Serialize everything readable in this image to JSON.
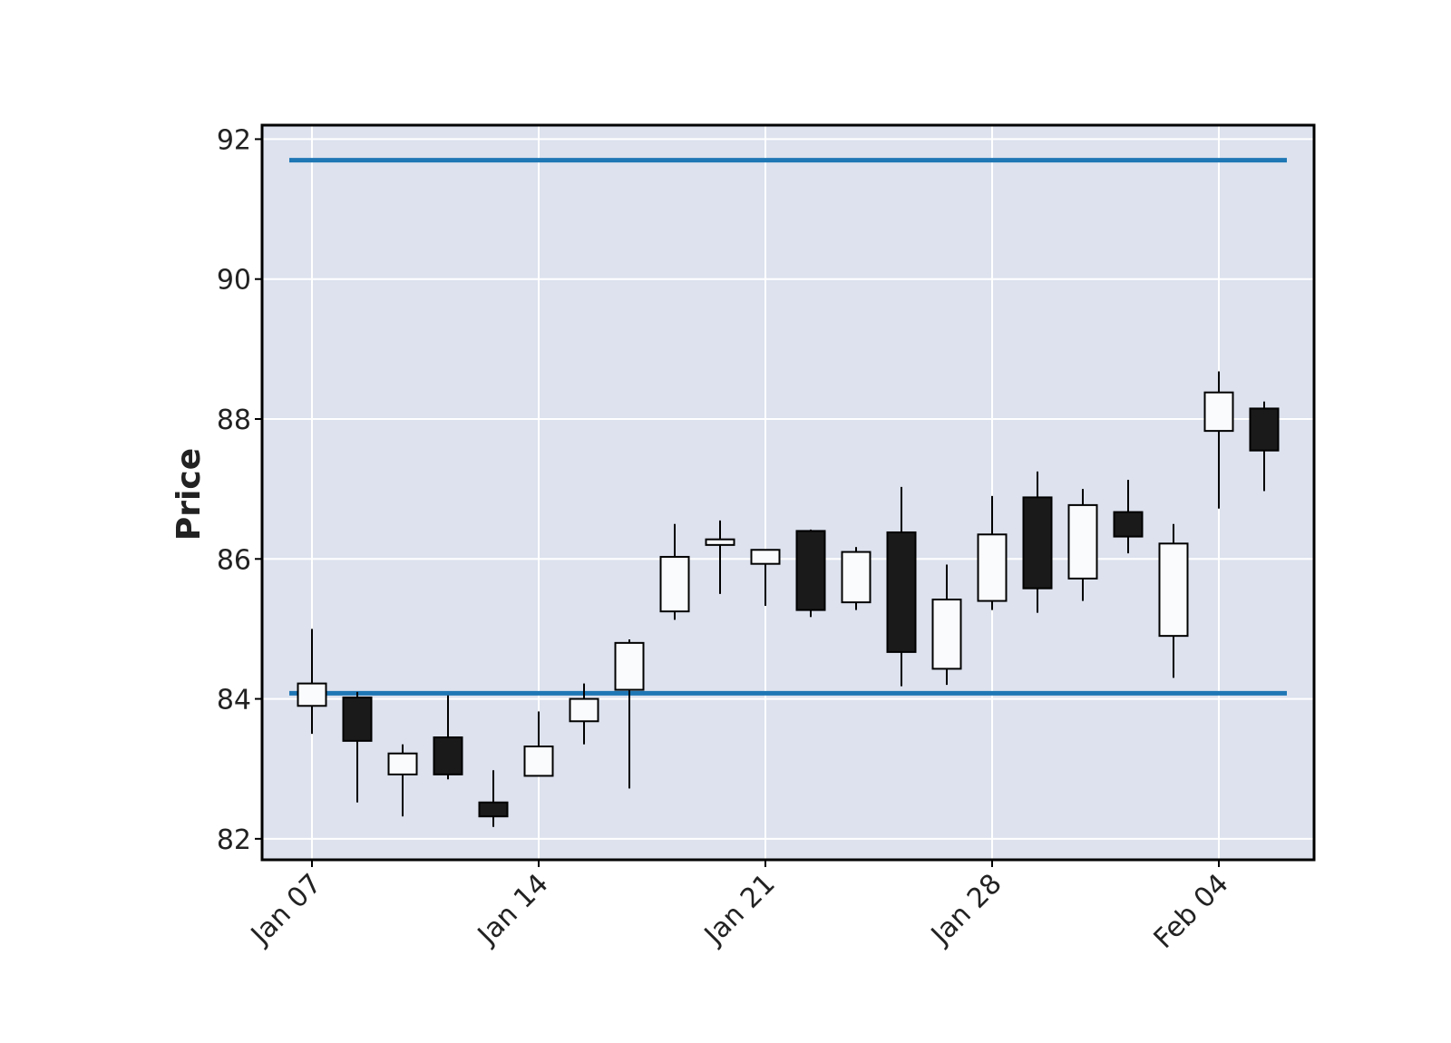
{
  "chart_data": {
    "type": "candlestick",
    "title": "",
    "xlabel": "",
    "ylabel": "Price",
    "ylim": [
      81.7,
      92.2
    ],
    "y_ticks": [
      "82",
      "84",
      "86",
      "88",
      "90",
      "92"
    ],
    "x_ticks": [
      {
        "label": "Jan 07",
        "date": "2019-01-07"
      },
      {
        "label": "Jan 14",
        "date": "2019-01-14"
      },
      {
        "label": "Jan 21",
        "date": "2019-01-21"
      },
      {
        "label": "Jan 28",
        "date": "2019-01-28"
      },
      {
        "label": "Feb 04",
        "date": "2019-02-04"
      }
    ],
    "grid": true,
    "colors": {
      "background": "#dde2ee",
      "grid": "#ffffff",
      "up_fill": "#fafbfd",
      "down_fill": "#1a1a1a",
      "wick": "#000000",
      "hline": "#1f77b4"
    },
    "hlines": [
      91.7,
      84.08
    ],
    "candles": [
      {
        "date": "2019-01-07",
        "open": 83.9,
        "high": 85.0,
        "low": 83.5,
        "close": 84.22
      },
      {
        "date": "2019-01-08",
        "open": 84.02,
        "high": 84.1,
        "low": 82.52,
        "close": 83.4
      },
      {
        "date": "2019-01-09",
        "open": 82.92,
        "high": 83.35,
        "low": 82.32,
        "close": 83.22
      },
      {
        "date": "2019-01-10",
        "open": 83.45,
        "high": 84.05,
        "low": 82.85,
        "close": 82.92
      },
      {
        "date": "2019-01-11",
        "open": 82.52,
        "high": 82.98,
        "low": 82.17,
        "close": 82.32
      },
      {
        "date": "2019-01-14",
        "open": 82.9,
        "high": 83.82,
        "low": 82.9,
        "close": 83.32
      },
      {
        "date": "2019-01-15",
        "open": 83.68,
        "high": 84.22,
        "low": 83.35,
        "close": 84.0
      },
      {
        "date": "2019-01-16",
        "open": 84.13,
        "high": 84.85,
        "low": 82.72,
        "close": 84.8
      },
      {
        "date": "2019-01-17",
        "open": 85.25,
        "high": 86.5,
        "low": 85.13,
        "close": 86.03
      },
      {
        "date": "2019-01-18",
        "open": 86.2,
        "high": 86.55,
        "low": 85.5,
        "close": 86.28
      },
      {
        "date": "2019-01-21",
        "open": 85.93,
        "high": 86.13,
        "low": 85.33,
        "close": 86.13
      },
      {
        "date": "2019-01-22",
        "open": 86.4,
        "high": 86.42,
        "low": 85.17,
        "close": 85.27
      },
      {
        "date": "2019-01-23",
        "open": 85.38,
        "high": 86.17,
        "low": 85.27,
        "close": 86.1
      },
      {
        "date": "2019-01-24",
        "open": 86.38,
        "high": 87.03,
        "low": 84.18,
        "close": 84.67
      },
      {
        "date": "2019-01-25",
        "open": 84.43,
        "high": 85.92,
        "low": 84.2,
        "close": 85.42
      },
      {
        "date": "2019-01-28",
        "open": 85.4,
        "high": 86.9,
        "low": 85.27,
        "close": 86.35
      },
      {
        "date": "2019-01-29",
        "open": 86.88,
        "high": 87.25,
        "low": 85.23,
        "close": 85.58
      },
      {
        "date": "2019-01-30",
        "open": 85.72,
        "high": 87.0,
        "low": 85.4,
        "close": 86.77
      },
      {
        "date": "2019-01-31",
        "open": 86.67,
        "high": 87.13,
        "low": 86.08,
        "close": 86.32
      },
      {
        "date": "2019-02-01",
        "open": 84.9,
        "high": 86.5,
        "low": 84.3,
        "close": 86.22
      },
      {
        "date": "2019-02-04",
        "open": 87.83,
        "high": 88.68,
        "low": 86.72,
        "close": 88.38
      },
      {
        "date": "2019-02-05",
        "open": 88.15,
        "high": 88.25,
        "low": 86.97,
        "close": 87.55
      }
    ]
  }
}
